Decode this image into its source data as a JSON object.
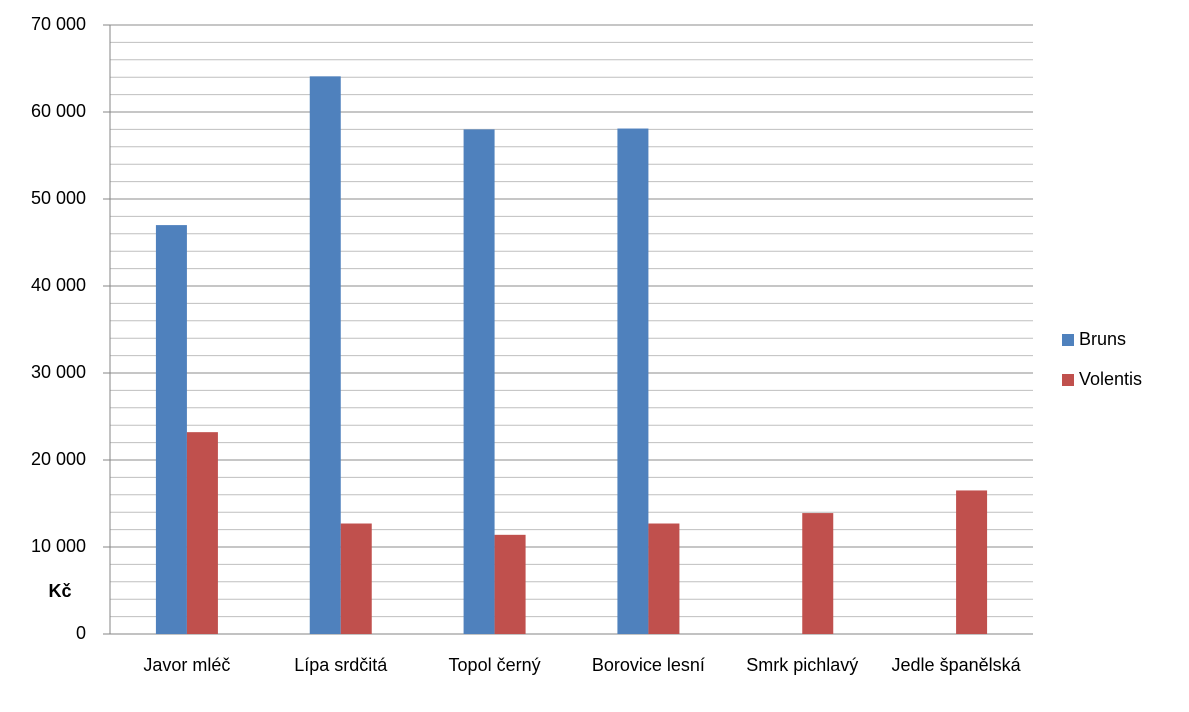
{
  "chart_data": {
    "type": "bar",
    "y_label": "Kč",
    "categories": [
      "Javor mléč",
      "Lípa srdčitá",
      "Topol černý",
      "Borovice lesní",
      "Smrk pichlavý",
      "Jedle španělská"
    ],
    "series": [
      {
        "name": "Bruns",
        "color": "#4f81bd",
        "values": [
          47000,
          64100,
          58000,
          58100,
          null,
          null
        ]
      },
      {
        "name": "Volentis",
        "color": "#c0504d",
        "values": [
          23200,
          12700,
          11400,
          12700,
          13900,
          16500
        ]
      }
    ],
    "ylim": [
      0,
      70000
    ],
    "yticks": [
      0,
      {
        "value": 10000,
        "label": "10 000"
      },
      {
        "value": 20000,
        "label": "20 000"
      },
      {
        "value": 30000,
        "label": "30 000"
      },
      {
        "value": 40000,
        "label": "40 000"
      },
      {
        "value": 50000,
        "label": "50 000"
      },
      {
        "value": 60000,
        "label": "60 000"
      },
      {
        "value": 70000,
        "label": "70 000"
      }
    ],
    "minor_yticks": [
      2000,
      4000,
      6000,
      8000,
      12000,
      14000,
      16000,
      18000,
      22000,
      24000,
      26000,
      28000,
      32000,
      34000,
      36000,
      38000,
      42000,
      44000,
      46000,
      48000,
      52000,
      54000,
      56000,
      58000,
      62000,
      64000,
      66000,
      68000
    ],
    "grid": true,
    "legend": "right"
  }
}
